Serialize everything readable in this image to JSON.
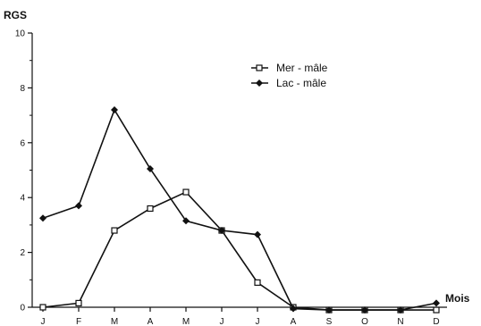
{
  "chart_data": {
    "type": "line",
    "title": "",
    "ylabel": "RGS",
    "xlabel": "Mois",
    "categories": [
      "J",
      "F",
      "M",
      "A",
      "M",
      "J",
      "J",
      "A",
      "S",
      "O",
      "N",
      "D"
    ],
    "yticks": [
      0,
      2,
      4,
      6,
      8,
      10
    ],
    "ylim": [
      0,
      10
    ],
    "grid": false,
    "legend_position": "top-right",
    "series": [
      {
        "name": "Mer - mâle",
        "marker": "open-square",
        "color": "#111111",
        "values": [
          0.0,
          0.15,
          2.8,
          3.6,
          4.2,
          2.8,
          0.9,
          0.0,
          -0.1,
          -0.1,
          -0.1,
          -0.1
        ]
      },
      {
        "name": "Lac - mâle",
        "marker": "filled-diamond",
        "color": "#111111",
        "values": [
          3.25,
          3.7,
          7.2,
          5.05,
          3.15,
          2.8,
          2.65,
          -0.05,
          -0.1,
          -0.1,
          -0.1,
          0.15
        ]
      }
    ]
  }
}
